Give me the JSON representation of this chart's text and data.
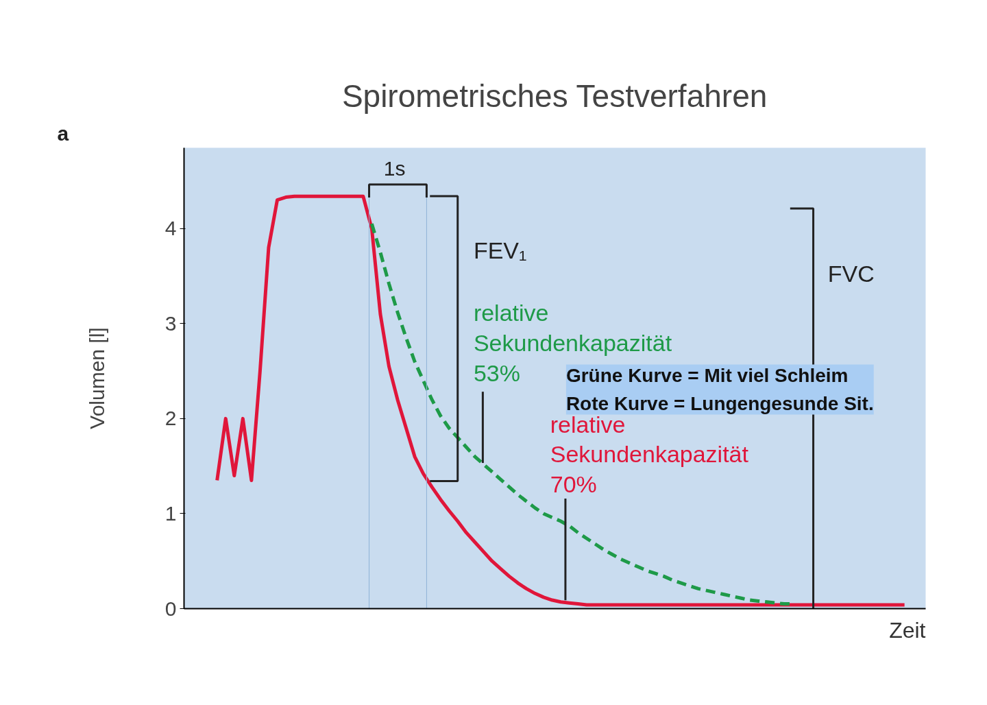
{
  "chart_data": {
    "type": "line",
    "title": "Spirometrisches Testverfahren",
    "ylabel": "Volumen [l]",
    "xlabel": "Zeit",
    "categories": [
      null,
      null,
      null,
      null,
      null,
      null,
      null,
      null,
      null,
      null,
      null,
      null,
      null,
      null,
      null,
      null,
      null,
      null,
      null,
      null,
      null,
      null,
      null,
      null,
      null,
      null,
      null,
      null,
      null,
      null,
      null,
      null,
      null,
      null,
      null,
      null,
      null,
      null,
      null,
      null,
      null,
      null,
      null,
      null,
      null,
      null,
      null,
      null,
      null,
      null,
      null,
      null,
      null,
      null,
      null,
      null,
      null,
      null,
      null,
      null,
      null,
      null,
      null,
      null,
      null,
      null,
      null,
      null,
      null,
      null,
      null,
      null,
      null,
      null,
      null,
      null,
      null,
      null,
      null,
      null,
      null
    ],
    "series": [
      {
        "color": "#e0163a",
        "line_style": "solid",
        "values": [
          1.35,
          2.0,
          1.4,
          2.0,
          1.35,
          2.5,
          3.8,
          4.3,
          4.33,
          4.34,
          4.34,
          4.34,
          4.34,
          4.34,
          4.34,
          4.34,
          4.34,
          4.34,
          4.0,
          3.1,
          2.55,
          2.2,
          1.9,
          1.6,
          1.42,
          1.28,
          1.15,
          1.03,
          0.92,
          0.8,
          0.7,
          0.6,
          0.5,
          0.42,
          0.34,
          0.27,
          0.21,
          0.16,
          0.12,
          0.09,
          0.07,
          0.06,
          0.05,
          0.04,
          0.04,
          0.04,
          0.04,
          0.04,
          0.04,
          0.04,
          0.04,
          0.04,
          0.04,
          0.04,
          0.04,
          0.04,
          0.04,
          0.04,
          0.04,
          0.04,
          0.04,
          0.04,
          0.04,
          0.04,
          0.04,
          0.04,
          0.04,
          0.04,
          0.04,
          0.04,
          0.04,
          0.04,
          0.04,
          0.04,
          0.04,
          0.04,
          0.04,
          0.04,
          0.04,
          0.04,
          0.04
        ]
      },
      {
        "color": "#1e9a48",
        "line_style": "dashed",
        "values": [
          null,
          null,
          null,
          null,
          null,
          null,
          null,
          null,
          null,
          null,
          null,
          null,
          null,
          null,
          null,
          null,
          null,
          null,
          4.05,
          3.75,
          3.42,
          3.12,
          2.85,
          2.6,
          2.4,
          2.2,
          2.03,
          1.9,
          1.8,
          1.7,
          1.6,
          1.52,
          1.44,
          1.36,
          1.28,
          1.2,
          1.13,
          1.06,
          1.0,
          0.96,
          0.92,
          0.87,
          0.8,
          0.74,
          0.68,
          0.62,
          0.57,
          0.52,
          0.48,
          0.44,
          0.4,
          0.37,
          0.34,
          0.3,
          0.27,
          0.24,
          0.21,
          0.19,
          0.17,
          0.15,
          0.13,
          0.11,
          0.09,
          0.08,
          0.07,
          0.06,
          0.05,
          0.05,
          null,
          null,
          null,
          null,
          null,
          null,
          null,
          null,
          null,
          null,
          null,
          null,
          null
        ]
      }
    ],
    "ylim": [
      0,
      4.85
    ],
    "yticks": [
      0,
      1,
      2,
      3,
      4
    ],
    "tick_labels": "y",
    "grid": false,
    "marker": "none",
    "annotations": [
      "a",
      "1s",
      "FEV₁",
      "FVC",
      "relative\nSekundenkapazität\n53%",
      "relative\nSekundenkapazität\n70%",
      "Grüne Kurve = Mit viel Schleim\nRote Kurve = Lungengesunde Sit."
    ]
  }
}
